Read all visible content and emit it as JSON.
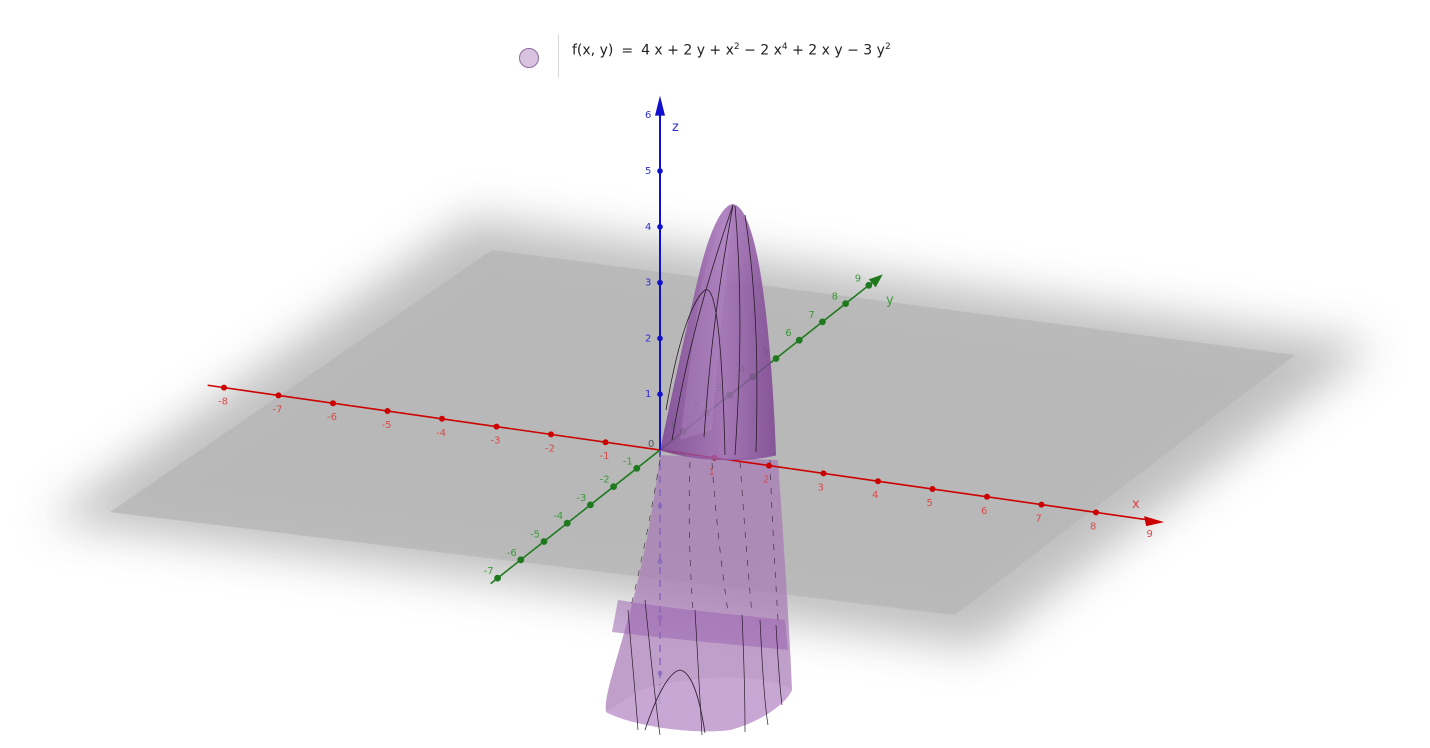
{
  "legend": {
    "function_name": "f(x, y)",
    "equals": "=",
    "terms": [
      {
        "text": "4 x + 2 y + x"
      },
      {
        "sup": "2"
      },
      {
        "text": " − 2 x"
      },
      {
        "sup": "4"
      },
      {
        "text": " + 2 x y − 3 y"
      },
      {
        "sup": "2"
      }
    ],
    "color": "#d8c2e0"
  },
  "axes": {
    "x": {
      "label": "x",
      "ticks": [
        "-8",
        "-7",
        "-6",
        "-5",
        "-4",
        "-3",
        "-2",
        "-1",
        "1",
        "2",
        "3",
        "4",
        "5",
        "6",
        "7",
        "8",
        "9"
      ],
      "color": "#cc0000"
    },
    "y": {
      "label": "y",
      "ticks": [
        "-7",
        "-6",
        "-5",
        "-4",
        "-3",
        "-2",
        "-1",
        "1",
        "2",
        "3",
        "4",
        "5",
        "6",
        "7",
        "8",
        "9"
      ],
      "color": "#1f7a1f"
    },
    "z": {
      "label": "z",
      "ticks": [
        "1",
        "2",
        "3",
        "4",
        "5",
        "6"
      ],
      "color": "#1010cc"
    },
    "origin_label": "0"
  },
  "surface": {
    "fill": "#8a4a9e",
    "stroke": "#2a1a2a"
  },
  "plane": {
    "fill": "#bdbdbd"
  }
}
